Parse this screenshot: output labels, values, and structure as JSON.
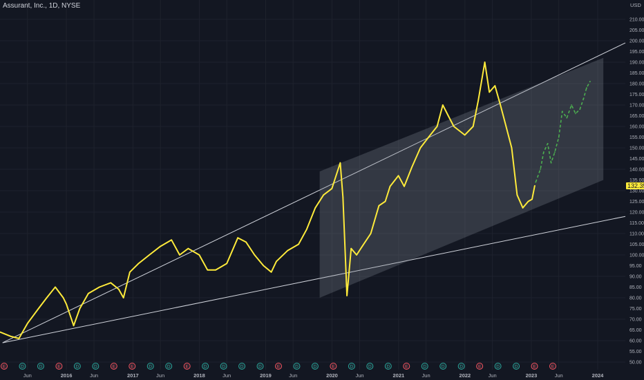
{
  "header": {
    "title": "Assurant, Inc., 1D, NYSE"
  },
  "price_axis": {
    "unit": "USD"
  },
  "current_price_label": "132.35",
  "colors": {
    "background": "#131722",
    "price_line": "#ffeb3b",
    "projection": "#4caf50",
    "trendline": "#d1d4dc",
    "channel_fill": "#8a8f9c",
    "axis_text": "#b2b5be",
    "grid": "#1e222d"
  },
  "chart_data": {
    "type": "line",
    "title": "Assurant, Inc., 1D, NYSE",
    "y_unit": "USD",
    "ylim": [
      50,
      210
    ],
    "y_ticks": [
      50,
      55,
      60,
      65,
      70,
      75,
      80,
      85,
      90,
      95,
      100,
      105,
      110,
      115,
      120,
      125,
      130,
      135,
      140,
      145,
      150,
      155,
      160,
      165,
      170,
      175,
      180,
      185,
      190,
      195,
      200,
      205,
      210
    ],
    "x_range": [
      "2015-01-01",
      "2024-06-01"
    ],
    "x_ticks": [
      {
        "x": "2015-06-01",
        "label": "Jun"
      },
      {
        "x": "2016-01-01",
        "label": "2016"
      },
      {
        "x": "2016-06-01",
        "label": "Jun"
      },
      {
        "x": "2017-01-01",
        "label": "2017"
      },
      {
        "x": "2017-06-01",
        "label": "Jun"
      },
      {
        "x": "2018-01-01",
        "label": "2018"
      },
      {
        "x": "2018-06-01",
        "label": "Jun"
      },
      {
        "x": "2019-01-01",
        "label": "2019"
      },
      {
        "x": "2019-06-01",
        "label": "Jun"
      },
      {
        "x": "2020-01-01",
        "label": "2020"
      },
      {
        "x": "2020-06-01",
        "label": "Jun"
      },
      {
        "x": "2021-01-01",
        "label": "2021"
      },
      {
        "x": "2021-06-01",
        "label": "Jun"
      },
      {
        "x": "2022-01-01",
        "label": "2022"
      },
      {
        "x": "2022-06-01",
        "label": "Jun"
      },
      {
        "x": "2023-01-01",
        "label": "2023"
      },
      {
        "x": "2023-06-01",
        "label": "Jun"
      },
      {
        "x": "2024-01-01",
        "label": "2024"
      }
    ],
    "grid": true,
    "series": [
      {
        "style": "solid",
        "color": "#ffeb3b",
        "points": [
          [
            "2015-01-01",
            64
          ],
          [
            "2015-03-01",
            62
          ],
          [
            "2015-04-15",
            61
          ],
          [
            "2015-06-01",
            68
          ],
          [
            "2015-08-01",
            75
          ],
          [
            "2015-09-15",
            80
          ],
          [
            "2015-11-01",
            85
          ],
          [
            "2015-12-15",
            80
          ],
          [
            "2016-01-01",
            77
          ],
          [
            "2016-02-10",
            67
          ],
          [
            "2016-03-15",
            75
          ],
          [
            "2016-05-01",
            82
          ],
          [
            "2016-07-01",
            85
          ],
          [
            "2016-09-01",
            87
          ],
          [
            "2016-10-15",
            84
          ],
          [
            "2016-11-10",
            80
          ],
          [
            "2016-12-15",
            92
          ],
          [
            "2017-02-01",
            96
          ],
          [
            "2017-04-01",
            100
          ],
          [
            "2017-06-01",
            104
          ],
          [
            "2017-08-01",
            107
          ],
          [
            "2017-09-15",
            100
          ],
          [
            "2017-11-01",
            103
          ],
          [
            "2018-01-01",
            100
          ],
          [
            "2018-02-15",
            93
          ],
          [
            "2018-04-01",
            93
          ],
          [
            "2018-06-01",
            96
          ],
          [
            "2018-08-01",
            108
          ],
          [
            "2018-09-15",
            106
          ],
          [
            "2018-11-01",
            100
          ],
          [
            "2018-12-20",
            95
          ],
          [
            "2019-02-01",
            92
          ],
          [
            "2019-03-01",
            97
          ],
          [
            "2019-05-01",
            102
          ],
          [
            "2019-07-01",
            105
          ],
          [
            "2019-08-15",
            112
          ],
          [
            "2019-10-01",
            122
          ],
          [
            "2019-11-15",
            128
          ],
          [
            "2019-12-31",
            131
          ],
          [
            "2020-02-15",
            143
          ],
          [
            "2020-03-01",
            127
          ],
          [
            "2020-03-23",
            81
          ],
          [
            "2020-04-15",
            103
          ],
          [
            "2020-05-15",
            100
          ],
          [
            "2020-06-15",
            104
          ],
          [
            "2020-08-01",
            110
          ],
          [
            "2020-09-15",
            123
          ],
          [
            "2020-10-20",
            125
          ],
          [
            "2020-11-15",
            132
          ],
          [
            "2020-12-31",
            137
          ],
          [
            "2021-02-01",
            132
          ],
          [
            "2021-03-15",
            141
          ],
          [
            "2021-05-01",
            150
          ],
          [
            "2021-06-15",
            155
          ],
          [
            "2021-08-01",
            160
          ],
          [
            "2021-09-01",
            170
          ],
          [
            "2021-10-01",
            165
          ],
          [
            "2021-11-01",
            160
          ],
          [
            "2021-12-31",
            156
          ],
          [
            "2022-02-15",
            160
          ],
          [
            "2022-03-15",
            172
          ],
          [
            "2022-04-20",
            190
          ],
          [
            "2022-05-15",
            176
          ],
          [
            "2022-06-15",
            179
          ],
          [
            "2022-07-15",
            170
          ],
          [
            "2022-08-15",
            160
          ],
          [
            "2022-09-15",
            150
          ],
          [
            "2022-10-15",
            128
          ],
          [
            "2022-11-15",
            122
          ],
          [
            "2022-12-15",
            125
          ],
          [
            "2023-01-05",
            126
          ],
          [
            "2023-01-20",
            132.35
          ]
        ]
      },
      {
        "style": "dashed",
        "color": "#4caf50",
        "points": [
          [
            "2023-01-25",
            134
          ],
          [
            "2023-02-20",
            140
          ],
          [
            "2023-03-10",
            148
          ],
          [
            "2023-04-01",
            152
          ],
          [
            "2023-04-20",
            143
          ],
          [
            "2023-05-10",
            148
          ],
          [
            "2023-06-01",
            155
          ],
          [
            "2023-06-20",
            167
          ],
          [
            "2023-07-15",
            164
          ],
          [
            "2023-08-10",
            170
          ],
          [
            "2023-09-01",
            166
          ],
          [
            "2023-09-25",
            168
          ],
          [
            "2023-10-15",
            173
          ],
          [
            "2023-11-01",
            178
          ],
          [
            "2023-11-20",
            181
          ]
        ]
      }
    ],
    "drawings": [
      {
        "type": "trendline",
        "from": [
          "2015-01-15",
          59
        ],
        "to": [
          "2024-06-01",
          199
        ]
      },
      {
        "type": "trendline",
        "from": [
          "2015-01-15",
          59
        ],
        "to": [
          "2024-06-01",
          118
        ]
      },
      {
        "type": "channel",
        "corners": [
          [
            "2019-10-25",
            139
          ],
          [
            "2024-02-01",
            192
          ],
          [
            "2024-02-01",
            135
          ],
          [
            "2019-10-25",
            80
          ]
        ]
      }
    ],
    "events": [
      "E",
      "D",
      "D",
      "E",
      "D",
      "D",
      "E",
      "E",
      "D",
      "D",
      "E",
      "D",
      "D",
      "D",
      "D",
      "E",
      "D",
      "D",
      "E",
      "D",
      "D",
      "D",
      "E",
      "D",
      "D",
      "D",
      "E",
      "D",
      "D",
      "E",
      "E"
    ]
  }
}
